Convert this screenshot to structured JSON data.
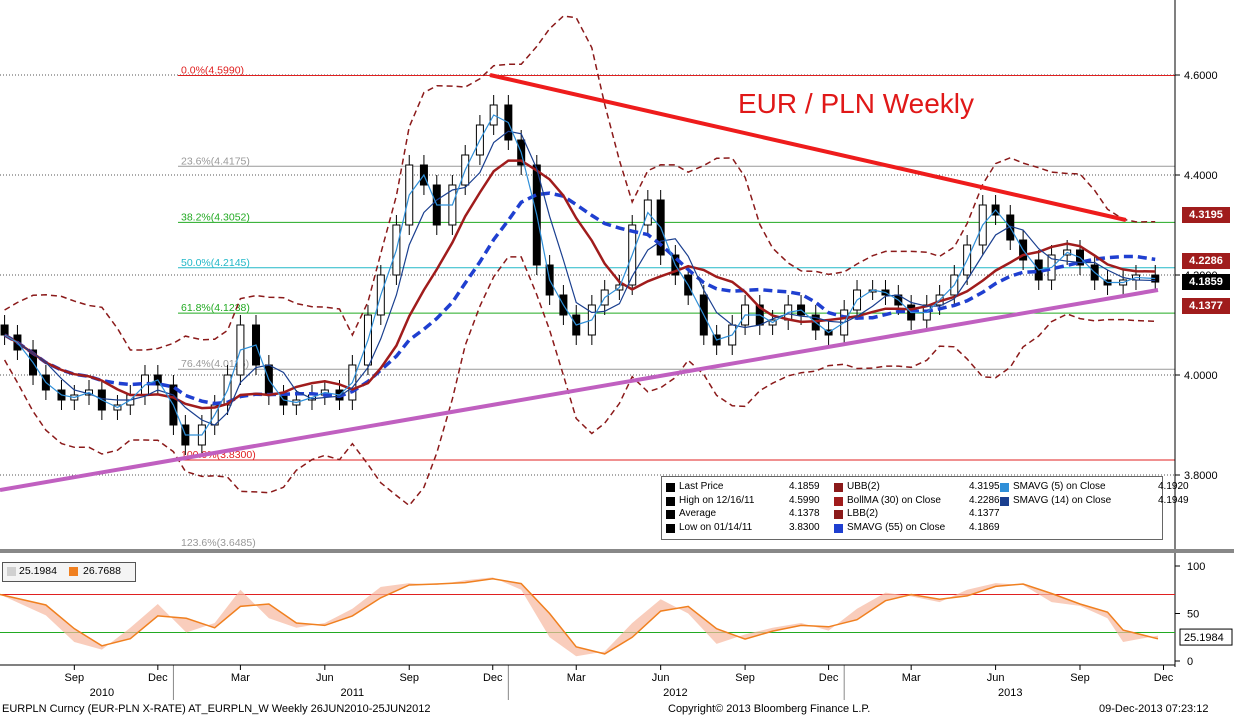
{
  "chart_data": {
    "type": "candlestick",
    "title": "EUR / PLN Weekly",
    "x_date_range": [
      "2010-06-26",
      "2013-12-09"
    ],
    "ylim": [
      3.65,
      4.75
    ],
    "y_ticks": [
      "4.6000",
      "4.4000",
      "4.2000",
      "4.0000",
      "3.8000"
    ],
    "x_month_labels": [
      {
        "date": "2010-09-15",
        "label": "Sep"
      },
      {
        "date": "2010-12-15",
        "label": "Dec"
      },
      {
        "date": "2011-03-15",
        "label": "Mar"
      },
      {
        "date": "2011-06-15",
        "label": "Jun"
      },
      {
        "date": "2011-09-15",
        "label": "Sep"
      },
      {
        "date": "2011-12-15",
        "label": "Dec"
      },
      {
        "date": "2012-03-15",
        "label": "Mar"
      },
      {
        "date": "2012-06-15",
        "label": "Jun"
      },
      {
        "date": "2012-09-15",
        "label": "Sep"
      },
      {
        "date": "2012-12-15",
        "label": "Dec"
      },
      {
        "date": "2013-03-15",
        "label": "Mar"
      },
      {
        "date": "2013-06-15",
        "label": "Jun"
      },
      {
        "date": "2013-09-15",
        "label": "Sep"
      },
      {
        "date": "2013-12-15",
        "label": "Dec"
      }
    ],
    "x_year_labels": [
      {
        "date": "2010-10-15",
        "label": "2010"
      },
      {
        "date": "2011-07-15",
        "label": "2011"
      },
      {
        "date": "2012-07-01",
        "label": "2012"
      },
      {
        "date": "2013-07-01",
        "label": "2013"
      }
    ],
    "fibonacci_levels": [
      {
        "label": "0.0%(4.5990)",
        "value": 4.599,
        "color": "#e02020"
      },
      {
        "label": "23.6%(4.4175)",
        "value": 4.4175,
        "color": "#999999"
      },
      {
        "label": "38.2%(4.3052)",
        "value": 4.3052,
        "color": "#22aa22"
      },
      {
        "label": "50.0%(4.2145)",
        "value": 4.2145,
        "color": "#22b8c8"
      },
      {
        "label": "61.8%(4.1238)",
        "value": 4.1238,
        "color": "#22aa22"
      },
      {
        "label": "76.4%(4.0116)",
        "value": 4.0116,
        "color": "#999999"
      },
      {
        "label": "100.0%(3.8300)",
        "value": 3.83,
        "color": "#e02020"
      },
      {
        "label": "123.6%(3.6485)",
        "value": 3.6485,
        "color": "#999999"
      }
    ],
    "trend_lines": [
      {
        "name": "resistance",
        "color": "#ee1c1c",
        "points": [
          [
            "2011-12-12",
            4.6
          ],
          [
            "2013-11-04",
            4.31
          ]
        ]
      },
      {
        "name": "support",
        "color": "#c060c0",
        "points": [
          [
            "2010-06-26",
            3.77
          ],
          [
            "2013-12-09",
            4.17
          ]
        ]
      }
    ],
    "weekly_close": [
      {
        "date": "2010-07-01",
        "value": 4.08
      },
      {
        "date": "2010-07-15",
        "value": 4.05
      },
      {
        "date": "2010-08-01",
        "value": 4.0
      },
      {
        "date": "2010-08-15",
        "value": 3.97
      },
      {
        "date": "2010-09-01",
        "value": 3.95
      },
      {
        "date": "2010-09-15",
        "value": 3.96
      },
      {
        "date": "2010-10-01",
        "value": 3.97
      },
      {
        "date": "2010-10-15",
        "value": 3.93
      },
      {
        "date": "2010-11-01",
        "value": 3.94
      },
      {
        "date": "2010-11-15",
        "value": 3.96
      },
      {
        "date": "2010-12-01",
        "value": 4.0
      },
      {
        "date": "2010-12-15",
        "value": 3.98
      },
      {
        "date": "2011-01-01",
        "value": 3.9
      },
      {
        "date": "2011-01-14",
        "value": 3.86
      },
      {
        "date": "2011-02-01",
        "value": 3.9
      },
      {
        "date": "2011-02-15",
        "value": 3.94
      },
      {
        "date": "2011-03-01",
        "value": 4.0
      },
      {
        "date": "2011-03-15",
        "value": 4.1
      },
      {
        "date": "2011-04-01",
        "value": 4.02
      },
      {
        "date": "2011-04-15",
        "value": 3.96
      },
      {
        "date": "2011-05-01",
        "value": 3.94
      },
      {
        "date": "2011-05-15",
        "value": 3.95
      },
      {
        "date": "2011-06-01",
        "value": 3.96
      },
      {
        "date": "2011-06-15",
        "value": 3.97
      },
      {
        "date": "2011-07-01",
        "value": 3.95
      },
      {
        "date": "2011-07-15",
        "value": 4.02
      },
      {
        "date": "2011-08-01",
        "value": 4.12
      },
      {
        "date": "2011-08-15",
        "value": 4.2
      },
      {
        "date": "2011-09-01",
        "value": 4.3
      },
      {
        "date": "2011-09-15",
        "value": 4.42
      },
      {
        "date": "2011-10-01",
        "value": 4.38
      },
      {
        "date": "2011-10-15",
        "value": 4.3
      },
      {
        "date": "2011-11-01",
        "value": 4.38
      },
      {
        "date": "2011-11-15",
        "value": 4.44
      },
      {
        "date": "2011-12-01",
        "value": 4.5
      },
      {
        "date": "2011-12-16",
        "value": 4.54
      },
      {
        "date": "2012-01-01",
        "value": 4.47
      },
      {
        "date": "2012-01-15",
        "value": 4.42
      },
      {
        "date": "2012-02-01",
        "value": 4.22
      },
      {
        "date": "2012-02-15",
        "value": 4.16
      },
      {
        "date": "2012-03-01",
        "value": 4.12
      },
      {
        "date": "2012-03-15",
        "value": 4.08
      },
      {
        "date": "2012-04-01",
        "value": 4.14
      },
      {
        "date": "2012-04-15",
        "value": 4.17
      },
      {
        "date": "2012-05-01",
        "value": 4.18
      },
      {
        "date": "2012-05-15",
        "value": 4.3
      },
      {
        "date": "2012-06-01",
        "value": 4.35
      },
      {
        "date": "2012-06-15",
        "value": 4.24
      },
      {
        "date": "2012-07-01",
        "value": 4.2
      },
      {
        "date": "2012-07-15",
        "value": 4.16
      },
      {
        "date": "2012-08-01",
        "value": 4.08
      },
      {
        "date": "2012-08-15",
        "value": 4.06
      },
      {
        "date": "2012-09-01",
        "value": 4.1
      },
      {
        "date": "2012-09-15",
        "value": 4.14
      },
      {
        "date": "2012-10-01",
        "value": 4.1
      },
      {
        "date": "2012-10-15",
        "value": 4.11
      },
      {
        "date": "2012-11-01",
        "value": 4.14
      },
      {
        "date": "2012-11-15",
        "value": 4.12
      },
      {
        "date": "2012-12-01",
        "value": 4.09
      },
      {
        "date": "2012-12-15",
        "value": 4.08
      },
      {
        "date": "2013-01-01",
        "value": 4.13
      },
      {
        "date": "2013-01-15",
        "value": 4.17
      },
      {
        "date": "2013-02-01",
        "value": 4.17
      },
      {
        "date": "2013-02-15",
        "value": 4.16
      },
      {
        "date": "2013-03-01",
        "value": 4.14
      },
      {
        "date": "2013-03-15",
        "value": 4.11
      },
      {
        "date": "2013-04-01",
        "value": 4.14
      },
      {
        "date": "2013-04-15",
        "value": 4.16
      },
      {
        "date": "2013-05-01",
        "value": 4.2
      },
      {
        "date": "2013-05-15",
        "value": 4.26
      },
      {
        "date": "2013-06-01",
        "value": 4.34
      },
      {
        "date": "2013-06-15",
        "value": 4.32
      },
      {
        "date": "2013-07-01",
        "value": 4.27
      },
      {
        "date": "2013-07-15",
        "value": 4.23
      },
      {
        "date": "2013-08-01",
        "value": 4.19
      },
      {
        "date": "2013-08-15",
        "value": 4.24
      },
      {
        "date": "2013-09-01",
        "value": 4.25
      },
      {
        "date": "2013-09-15",
        "value": 4.22
      },
      {
        "date": "2013-10-01",
        "value": 4.19
      },
      {
        "date": "2013-10-15",
        "value": 4.18
      },
      {
        "date": "2013-11-01",
        "value": 4.19
      },
      {
        "date": "2013-11-15",
        "value": 4.2
      },
      {
        "date": "2013-12-06",
        "value": 4.1859
      }
    ],
    "legend": {
      "rows": [
        [
          {
            "label": "Last Price",
            "value": "4.1859",
            "color": "#000000"
          },
          {
            "label": "UBB(2)",
            "value": "4.3195",
            "color": "#8b1a1a"
          },
          {
            "label": "SMAVG (5) on Close",
            "value": "4.1920",
            "color": "#2f8fd8"
          }
        ],
        [
          {
            "label": "High on 12/16/11",
            "value": "4.5990",
            "color": "#000000"
          },
          {
            "label": "BollMA (30) on Close",
            "value": "4.2286",
            "color": "#a01c1c"
          },
          {
            "label": "SMAVG (14) on Close",
            "value": "4.1949",
            "color": "#1a3f8f"
          }
        ],
        [
          {
            "label": "Average",
            "value": "4.1378",
            "color": "#000000"
          },
          {
            "label": "LBB(2)",
            "value": "4.1377",
            "color": "#8b1a1a"
          }
        ],
        [
          {
            "label": "Low on 01/14/11",
            "value": "3.8300",
            "color": "#000000"
          },
          {
            "label": "SMAVG (55) on Close",
            "value": "4.1869",
            "color": "#1f3fd0"
          }
        ]
      ]
    },
    "price_tags": [
      {
        "value": 4.3195,
        "label": "4.3195",
        "color": "#a01c1c"
      },
      {
        "value": 4.2286,
        "label": "4.2286",
        "color": "#a01c1c"
      },
      {
        "value": 4.1859,
        "label": "4.1859",
        "color": "#000000"
      },
      {
        "value": 4.1377,
        "label": "4.1377",
        "color": "#a01c1c"
      }
    ],
    "oscillator": {
      "ylim": [
        0,
        100
      ],
      "y_ticks": [
        "100",
        "50",
        "0"
      ],
      "levels": [
        {
          "value": 70,
          "color": "#e02020"
        },
        {
          "value": 30,
          "color": "#22aa22"
        }
      ],
      "legend_values": [
        {
          "value": "25.1984",
          "color": "#d0d0d0"
        },
        {
          "value": "26.7688",
          "color": "#f08020"
        }
      ],
      "last_tag": "25.1984",
      "k_line": [
        {
          "date": "2010-06-26",
          "value": 70
        },
        {
          "date": "2010-08-15",
          "value": 48
        },
        {
          "date": "2010-09-15",
          "value": 20
        },
        {
          "date": "2010-10-15",
          "value": 12
        },
        {
          "date": "2010-11-15",
          "value": 35
        },
        {
          "date": "2010-12-15",
          "value": 60
        },
        {
          "date": "2011-01-15",
          "value": 30
        },
        {
          "date": "2011-02-15",
          "value": 40
        },
        {
          "date": "2011-03-15",
          "value": 75
        },
        {
          "date": "2011-04-15",
          "value": 45
        },
        {
          "date": "2011-05-15",
          "value": 35
        },
        {
          "date": "2011-06-15",
          "value": 40
        },
        {
          "date": "2011-07-15",
          "value": 55
        },
        {
          "date": "2011-08-15",
          "value": 78
        },
        {
          "date": "2011-09-15",
          "value": 82
        },
        {
          "date": "2011-10-15",
          "value": 80
        },
        {
          "date": "2011-11-15",
          "value": 85
        },
        {
          "date": "2011-12-15",
          "value": 88
        },
        {
          "date": "2012-01-15",
          "value": 75
        },
        {
          "date": "2012-02-15",
          "value": 25
        },
        {
          "date": "2012-03-15",
          "value": 5
        },
        {
          "date": "2012-04-15",
          "value": 10
        },
        {
          "date": "2012-05-15",
          "value": 40
        },
        {
          "date": "2012-06-15",
          "value": 65
        },
        {
          "date": "2012-07-15",
          "value": 50
        },
        {
          "date": "2012-08-15",
          "value": 18
        },
        {
          "date": "2012-09-15",
          "value": 28
        },
        {
          "date": "2012-10-15",
          "value": 35
        },
        {
          "date": "2012-11-15",
          "value": 40
        },
        {
          "date": "2012-12-15",
          "value": 32
        },
        {
          "date": "2013-01-15",
          "value": 55
        },
        {
          "date": "2013-02-15",
          "value": 72
        },
        {
          "date": "2013-03-15",
          "value": 68
        },
        {
          "date": "2013-04-15",
          "value": 62
        },
        {
          "date": "2013-05-15",
          "value": 75
        },
        {
          "date": "2013-06-15",
          "value": 82
        },
        {
          "date": "2013-07-15",
          "value": 80
        },
        {
          "date": "2013-08-15",
          "value": 62
        },
        {
          "date": "2013-09-15",
          "value": 58
        },
        {
          "date": "2013-10-15",
          "value": 45
        },
        {
          "date": "2013-11-01",
          "value": 20
        },
        {
          "date": "2013-12-09",
          "value": 26.7688
        }
      ]
    }
  },
  "footer": {
    "left": "EURPLN Curncy (EUR-PLN X-RATE) AT_EURPLN_W  Weekly 26JUN2010-25JUN2012",
    "center": "Copyright© 2013 Bloomberg Finance L.P.",
    "right": "09-Dec-2013 07:23:12"
  }
}
